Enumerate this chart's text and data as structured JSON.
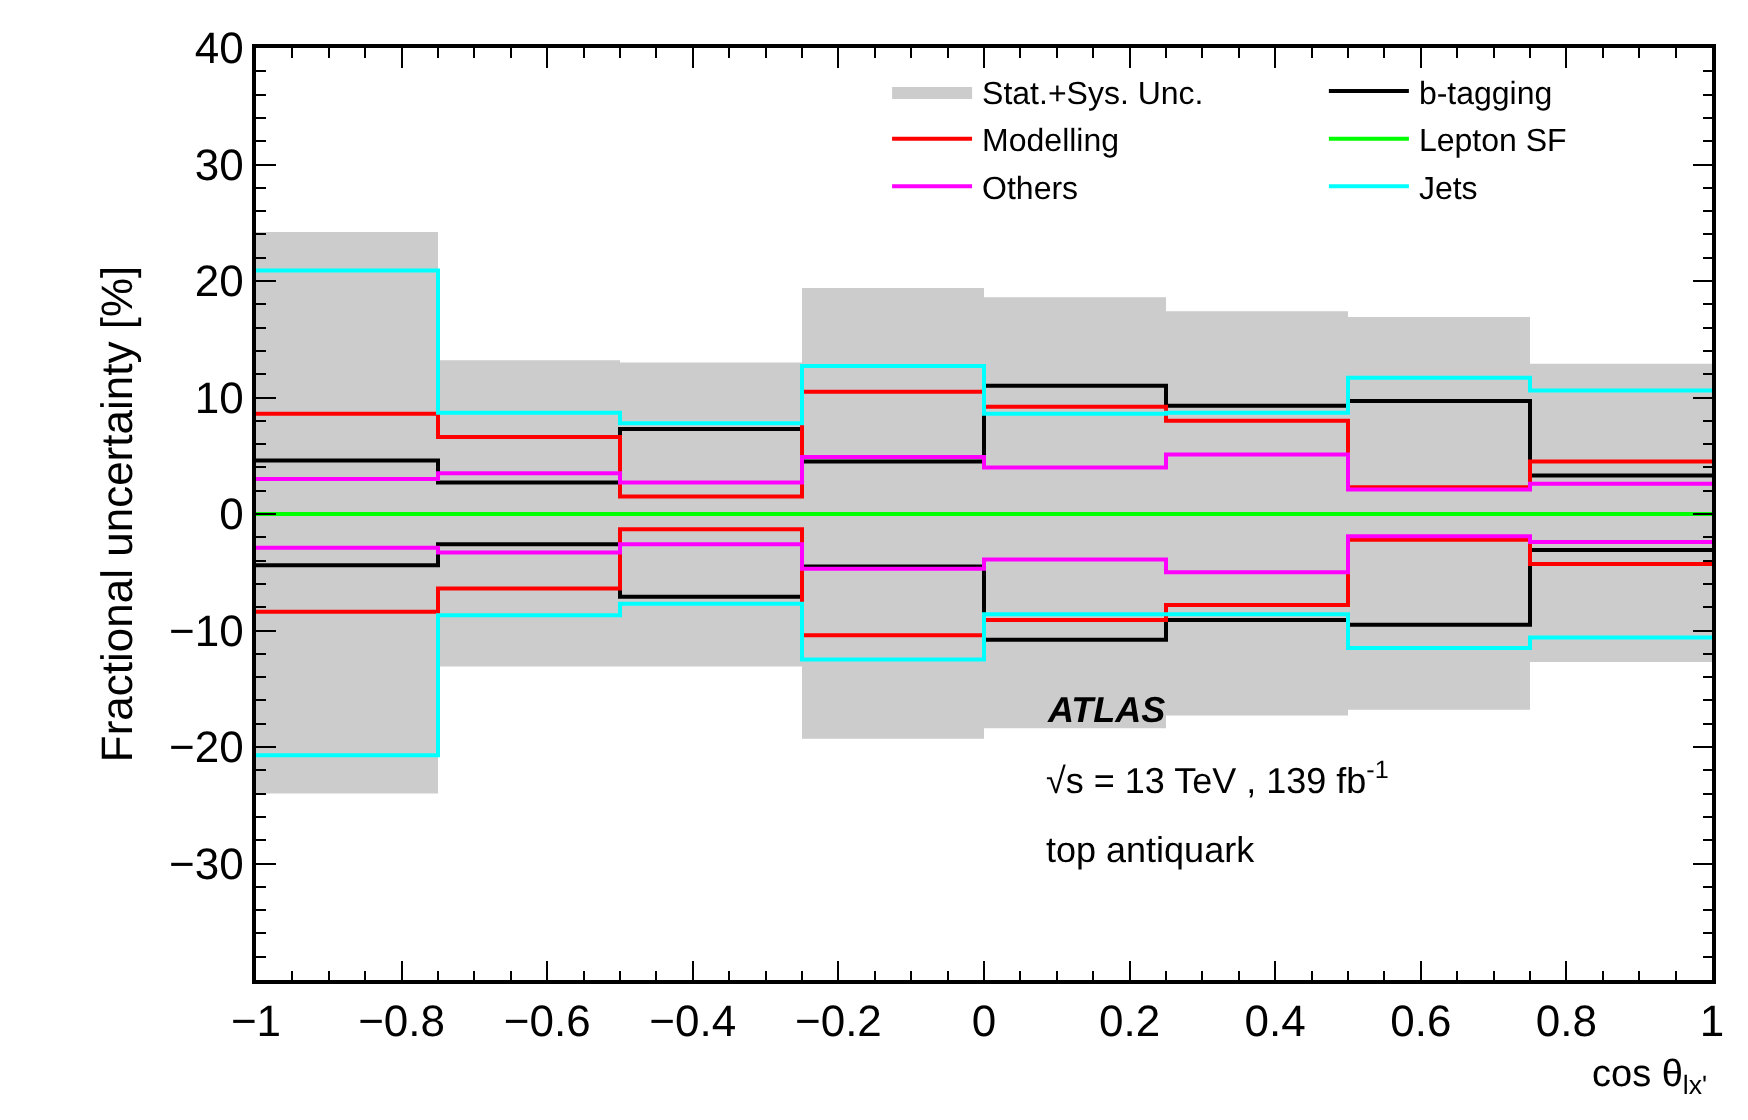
{
  "chart_data": {
    "type": "step",
    "x": [
      -1,
      -0.75,
      -0.5,
      -0.25,
      0,
      0.25,
      0.5,
      0.75,
      1
    ],
    "xlabel": "cos θ$_{lx'}$",
    "ylabel": "Fractional uncertainty [%]",
    "xlim": [
      -1,
      1
    ],
    "ylim": [
      -40,
      40
    ],
    "xticks": [
      {
        "value": -1,
        "label": "−1"
      },
      {
        "value": -0.8,
        "label": "−0.8"
      },
      {
        "value": -0.6,
        "label": "−0.6"
      },
      {
        "value": -0.4,
        "label": "−0.4"
      },
      {
        "value": -0.2,
        "label": "−0.2"
      },
      0,
      0.2,
      0.4,
      0.6,
      0.8,
      1
    ],
    "yticks": [
      {
        "value": -30,
        "label": "−30"
      },
      {
        "value": -20,
        "label": "−20"
      },
      {
        "value": -10,
        "label": "−10"
      },
      0,
      10,
      20,
      30,
      40
    ],
    "legend": "top right",
    "series": [
      {
        "name": "Stat.+Sys. Unc.",
        "type": "area",
        "color": "#cccccc",
        "values": [
          24.2,
          13.2,
          13.0,
          19.4,
          18.6,
          17.4,
          16.9,
          12.9,
          12.9
        ]
      },
      {
        "type": "area",
        "color": "#cccccc",
        "values": [
          -24.0,
          -13.1,
          -13.1,
          -19.3,
          -18.4,
          -17.3,
          -16.8,
          -12.7,
          -12.7
        ]
      },
      {
        "name": "b-tagging",
        "color": "#000000",
        "values": [
          4.6,
          2.7,
          7.3,
          4.5,
          11.0,
          9.3,
          9.7,
          3.3,
          3.3
        ]
      },
      {
        "name": "Modelling",
        "color": "#ff0000",
        "values": [
          8.6,
          6.6,
          1.5,
          10.5,
          9.2,
          8.0,
          2.3,
          4.5,
          4.5
        ]
      },
      {
        "name": "Lepton SF",
        "color": "#00ff00",
        "values": [
          0,
          0,
          0,
          0,
          0,
          0,
          0,
          0,
          0
        ]
      },
      {
        "name": "Others",
        "color": "#ff00ff",
        "values": [
          3.0,
          3.5,
          2.7,
          4.9,
          4.0,
          5.1,
          2.1,
          2.6,
          2.6
        ]
      },
      {
        "name": "Jets",
        "color": "#00ffff",
        "values": [
          20.9,
          8.7,
          7.8,
          12.7,
          8.6,
          8.7,
          11.7,
          10.6,
          10.6
        ]
      },
      {
        "color": "#000000",
        "values": [
          -4.4,
          -2.6,
          -7.1,
          -4.5,
          -10.8,
          -9.1,
          -9.5,
          -3.1,
          -3.1
        ]
      },
      {
        "color": "#ff0000",
        "values": [
          -8.4,
          -6.4,
          -1.3,
          -10.4,
          -9.1,
          -7.8,
          -2.2,
          -4.3,
          -4.3
        ]
      },
      {
        "color": "#ff00ff",
        "values": [
          -2.9,
          -3.3,
          -2.6,
          -4.7,
          -3.9,
          -5.0,
          -1.9,
          -2.4,
          -2.4
        ]
      },
      {
        "color": "#00ffff",
        "values": [
          -20.7,
          -8.7,
          -7.7,
          -12.5,
          -8.6,
          -8.6,
          -11.5,
          -10.6,
          -10.6
        ]
      }
    ],
    "annotations": [
      "ATLAS",
      "√s = 13 TeV , 139 fb$^{-1}$",
      "top antiquark"
    ]
  }
}
